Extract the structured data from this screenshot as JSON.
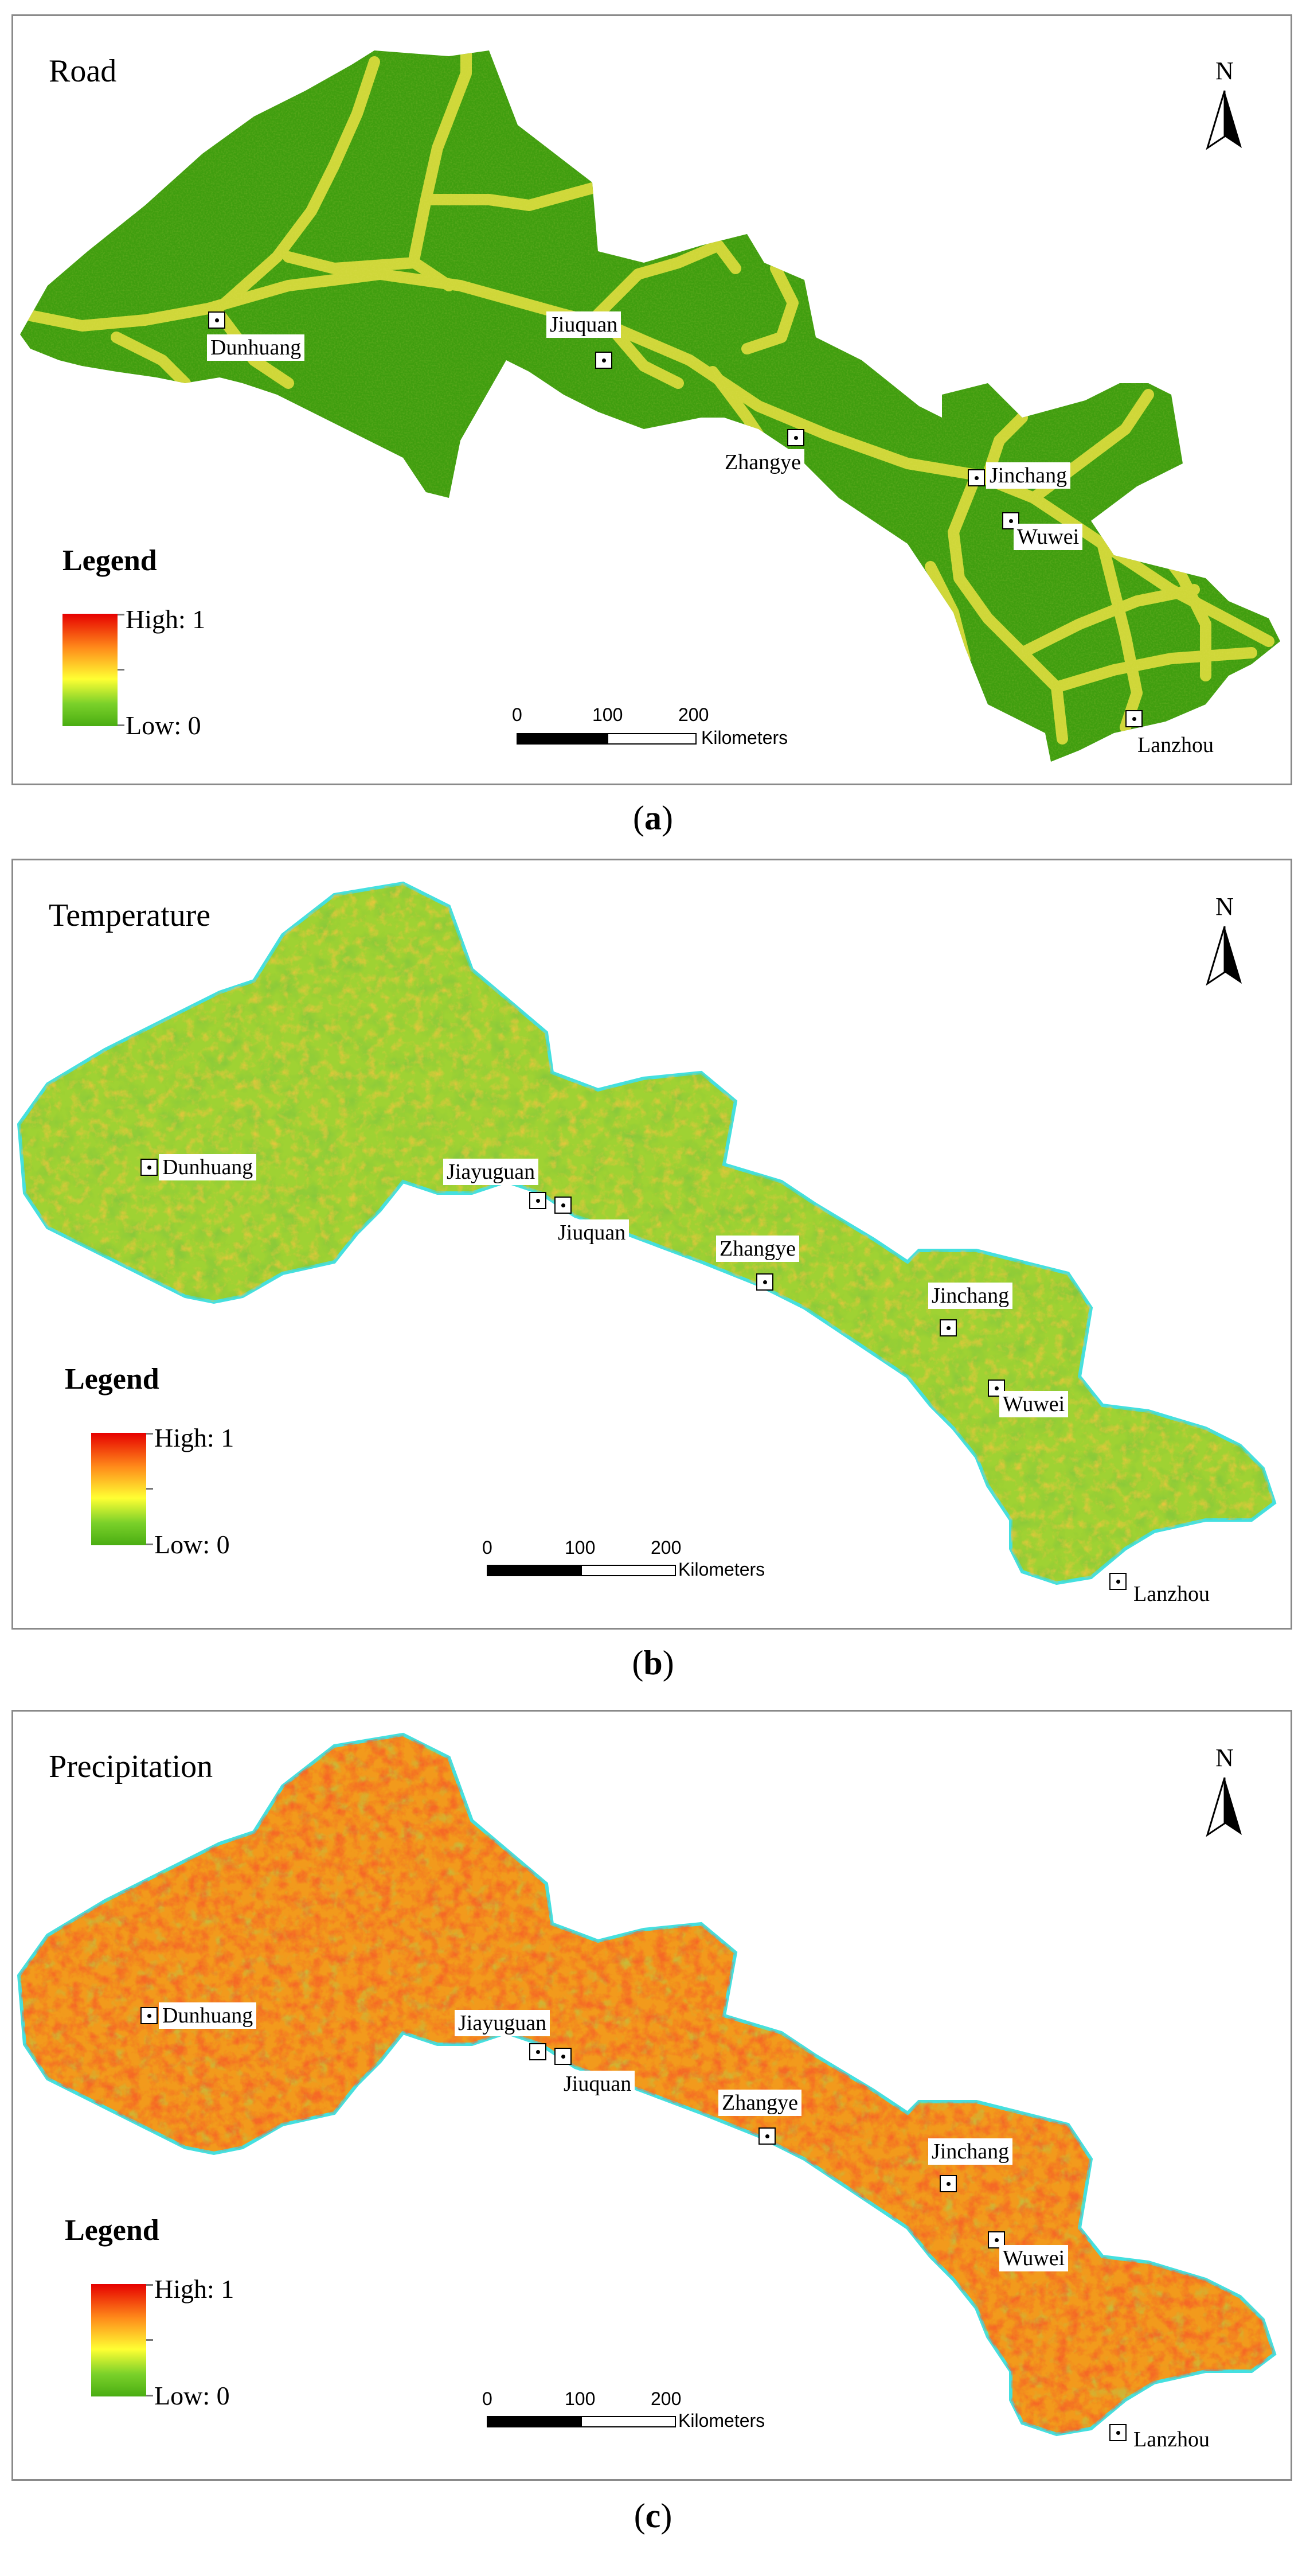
{
  "panels": [
    {
      "id": "a",
      "title": "Road",
      "caption_letter": "a",
      "style": "road",
      "legend": {
        "title": "Legend",
        "high": "High: 1",
        "low": "Low: 0"
      },
      "scale": {
        "ticks": [
          "0",
          "100",
          "200"
        ],
        "unit": "Kilometers"
      },
      "north_label": "N",
      "cities": [
        "Dunhuang",
        "Jiuquan",
        "Zhangye",
        "Jinchang",
        "Wuwei",
        "Lanzhou"
      ]
    },
    {
      "id": "b",
      "title": "Temperature",
      "caption_letter": "b",
      "style": "temperature",
      "legend": {
        "title": "Legend",
        "high": "High: 1",
        "low": "Low: 0"
      },
      "scale": {
        "ticks": [
          "0",
          "100",
          "200"
        ],
        "unit": "Kilometers"
      },
      "north_label": "N",
      "cities": [
        "Dunhuang",
        "Jiayuguan",
        "Jiuquan",
        "Zhangye",
        "Jinchang",
        "Wuwei",
        "Lanzhou"
      ]
    },
    {
      "id": "c",
      "title": "Precipitation",
      "caption_letter": "c",
      "style": "precipitation",
      "legend": {
        "title": "Legend",
        "high": "High: 1",
        "low": "Low: 0"
      },
      "scale": {
        "ticks": [
          "0",
          "100",
          "200"
        ],
        "unit": "Kilometers"
      },
      "north_label": "N",
      "cities": [
        "Dunhuang",
        "Jiayuguan",
        "Jiuquan",
        "Zhangye",
        "Jinchang",
        "Wuwei",
        "Lanzhou"
      ]
    }
  ],
  "colors": {
    "road_base": "#3f9e0f",
    "road_line": "#d9dc3a",
    "outline": "#44e0e0",
    "high": "#e60000",
    "mid": "#ffff33",
    "low": "#4aad12"
  }
}
